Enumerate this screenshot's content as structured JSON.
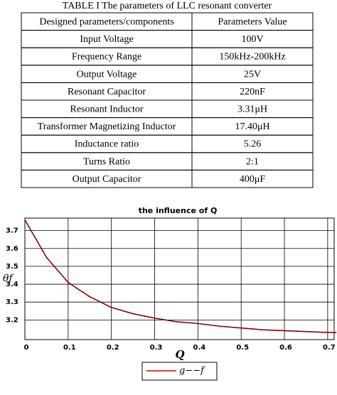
{
  "table": {
    "title": "TABLE I  The parameters of LLC resonant converter",
    "header": [
      "Designed parameters/components",
      "Parameters Value"
    ],
    "rows": [
      [
        "Input Voltage",
        "100V"
      ],
      [
        "Frequency Range",
        "150kHz-200kHz"
      ],
      [
        "Output Voltage",
        "25V"
      ],
      [
        "Resonant Capacitor",
        "220nF"
      ],
      [
        "Resonant Inductor",
        "3.31μH"
      ],
      [
        "Transformer Magnetizing Inductor",
        "17.40μH"
      ],
      [
        "Inductance ratio",
        "5.26"
      ],
      [
        "Turns Ratio",
        "2:1"
      ],
      [
        "Output Capacitor",
        "400μF"
      ]
    ]
  },
  "chart_data": {
    "type": "line",
    "title": "the influence of Q",
    "x_label": "Q",
    "y_label": "θf",
    "x": [
      0,
      0.05,
      0.1,
      0.15,
      0.2,
      0.25,
      0.3,
      0.35,
      0.4,
      0.45,
      0.5,
      0.55,
      0.6,
      0.65,
      0.7,
      0.72
    ],
    "series": [
      {
        "name": "g−−f",
        "color": "#cc0000",
        "values": [
          3.76,
          3.55,
          3.41,
          3.33,
          3.27,
          3.235,
          3.21,
          3.19,
          3.18,
          3.165,
          3.155,
          3.145,
          3.14,
          3.135,
          3.13,
          3.13
        ]
      }
    ],
    "xlim": [
      0,
      0.715
    ],
    "ylim": [
      3.09,
      3.77
    ],
    "xticks": [
      0,
      0.1,
      0.2,
      0.3,
      0.4,
      0.5,
      0.6,
      0.7
    ],
    "yticks": [
      3.2,
      3.3,
      3.4,
      3.5,
      3.6,
      3.7
    ],
    "grid": true
  }
}
